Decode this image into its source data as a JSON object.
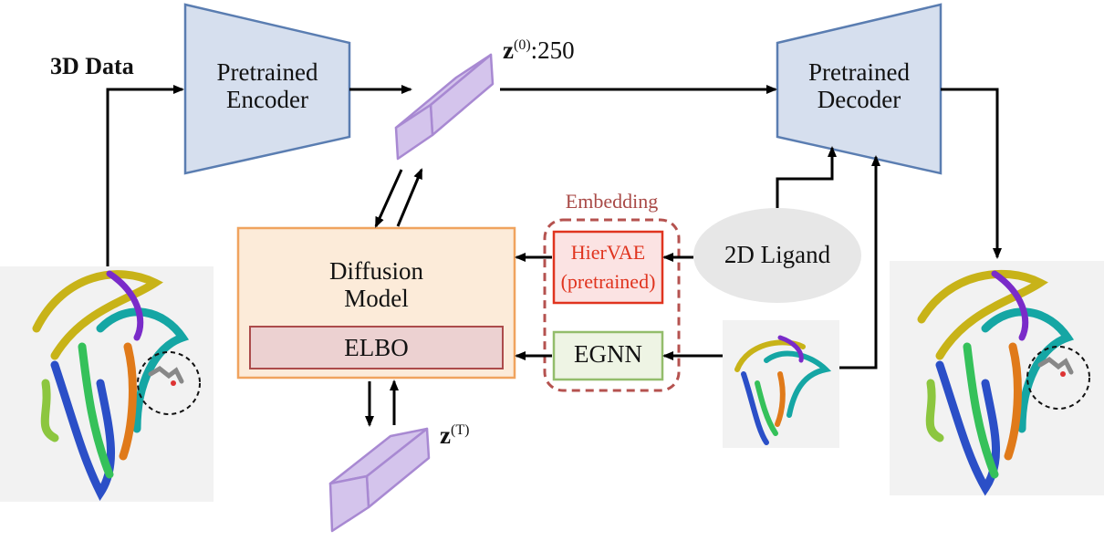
{
  "input_label": "3D Data",
  "encoder": {
    "line1": "Pretrained",
    "line2": "Encoder"
  },
  "decoder": {
    "line1": "Pretrained",
    "line2": "Decoder"
  },
  "latent_top": {
    "symbol": "z",
    "superscript": "(0)",
    "suffix": ":250"
  },
  "latent_bottom": {
    "symbol": "z",
    "superscript": "(T)"
  },
  "diffusion": {
    "line1": "Diffusion",
    "line2": "Model",
    "elbo": "ELBO"
  },
  "embedding": {
    "title": "Embedding",
    "hiervae_line1": "HierVAE",
    "hiervae_line2": "(pretrained)",
    "egnn": "EGNN"
  },
  "ligand": "2D Ligand",
  "colors": {
    "trapezoid_fill": "#d6dfee",
    "trapezoid_stroke": "#5a7db1",
    "latent_fill": "#d4c4ec",
    "latent_stroke": "#a889d2",
    "diffusion_fill": "#fcebd9",
    "diffusion_stroke": "#f0a35e",
    "elbo_fill": "#ecd1d1",
    "elbo_stroke": "#ac4b4b",
    "hiervae_fill": "#fbe3e3",
    "hiervae_stroke": "#e0341f",
    "egnn_fill": "#eef4e4",
    "egnn_stroke": "#93bd6b",
    "embedding_dash": "#b5524f",
    "ligand_fill": "#e7e7e7",
    "protein_bg": "#f2f2f2"
  }
}
